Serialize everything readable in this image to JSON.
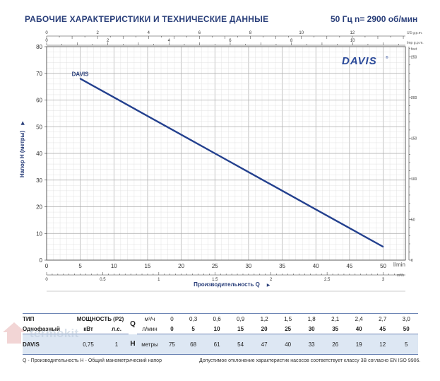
{
  "header": {
    "title": "РАБОЧИЕ ХАРАКТЕРИСТИКИ И ТЕХНИЧЕСКИЕ ДАННЫЕ",
    "frequency": "50 Гц",
    "speed": "n= 2900 об/мин"
  },
  "logo_text": "DAVIS",
  "chart_data": {
    "type": "line",
    "ylabel": "Напор H (метры)",
    "xlabel": "Производительность Q",
    "xlim": [
      0,
      53.3
    ],
    "ylim": [
      0,
      80
    ],
    "grid": true,
    "x_axis_unit": "l/min",
    "x_ticks": [
      0,
      5,
      10,
      15,
      20,
      25,
      30,
      35,
      40,
      45,
      50
    ],
    "y_ticks": [
      0,
      10,
      20,
      30,
      40,
      50,
      60,
      70,
      80
    ],
    "series": [
      {
        "name": "DAVIS",
        "color": "#23408e",
        "x": [
          5,
          10,
          15,
          20,
          25,
          30,
          35,
          40,
          45,
          50
        ],
        "y": [
          68,
          61,
          54,
          47,
          40,
          33,
          26,
          19,
          12,
          5
        ]
      }
    ],
    "secondary_axes": {
      "us_gpm": {
        "unit": "US g.p.m.",
        "ticks": [
          0,
          2,
          4,
          6,
          8,
          10,
          12
        ],
        "tick_labels": [
          "0",
          "2",
          "4",
          "6",
          "8",
          "10",
          "12"
        ]
      },
      "imp_gpm": {
        "unit": "Imp g.p.m.",
        "ticks": [
          0,
          2,
          4,
          6,
          8,
          10
        ],
        "tick_labels": [
          "0",
          "2",
          "4",
          "6",
          "8",
          "10"
        ]
      },
      "m3h": {
        "unit": "m³/h",
        "ticks": [
          0,
          0.5,
          1,
          1.5,
          2,
          2.5,
          3
        ],
        "tick_labels": [
          "0",
          "0.5",
          "1",
          "1.5",
          "2",
          "2.5",
          "3"
        ]
      },
      "feet": {
        "unit": "feet",
        "ticks": [
          0,
          50,
          100,
          150,
          200,
          250
        ],
        "tick_labels": [
          "0",
          "50",
          "100",
          "150",
          "200",
          "250"
        ]
      }
    }
  },
  "table": {
    "type_label": "ТИП",
    "power_label": "МОЩНОСТЬ (P2)",
    "single_phase_label": "Однофазный",
    "kw_label": "кВт",
    "hp_label": "л.с.",
    "q_label": "Q",
    "m3h_unit": "м³/ч",
    "lmin_unit": "л/мин",
    "h_label": "H",
    "h_unit": "метры",
    "q_m3h": [
      "0",
      "0,3",
      "0,6",
      "0,9",
      "1,2",
      "1,5",
      "1,8",
      "2,1",
      "2,4",
      "2,7",
      "3,0"
    ],
    "q_lmin": [
      "0",
      "5",
      "10",
      "15",
      "20",
      "25",
      "30",
      "35",
      "40",
      "45",
      "50"
    ],
    "rows": [
      {
        "model": "DAVIS",
        "kw": "0,75",
        "hp": "1",
        "h": [
          "75",
          "68",
          "61",
          "54",
          "47",
          "40",
          "33",
          "26",
          "19",
          "12",
          "5"
        ]
      }
    ]
  },
  "footer": {
    "legend": "Q - Производительность   H - Общий манометрический напор",
    "tolerance": "Допустимое отклонение характеристик насосов соответствует классу 3B согласно EN ISO 9906."
  },
  "watermark": "termokit"
}
